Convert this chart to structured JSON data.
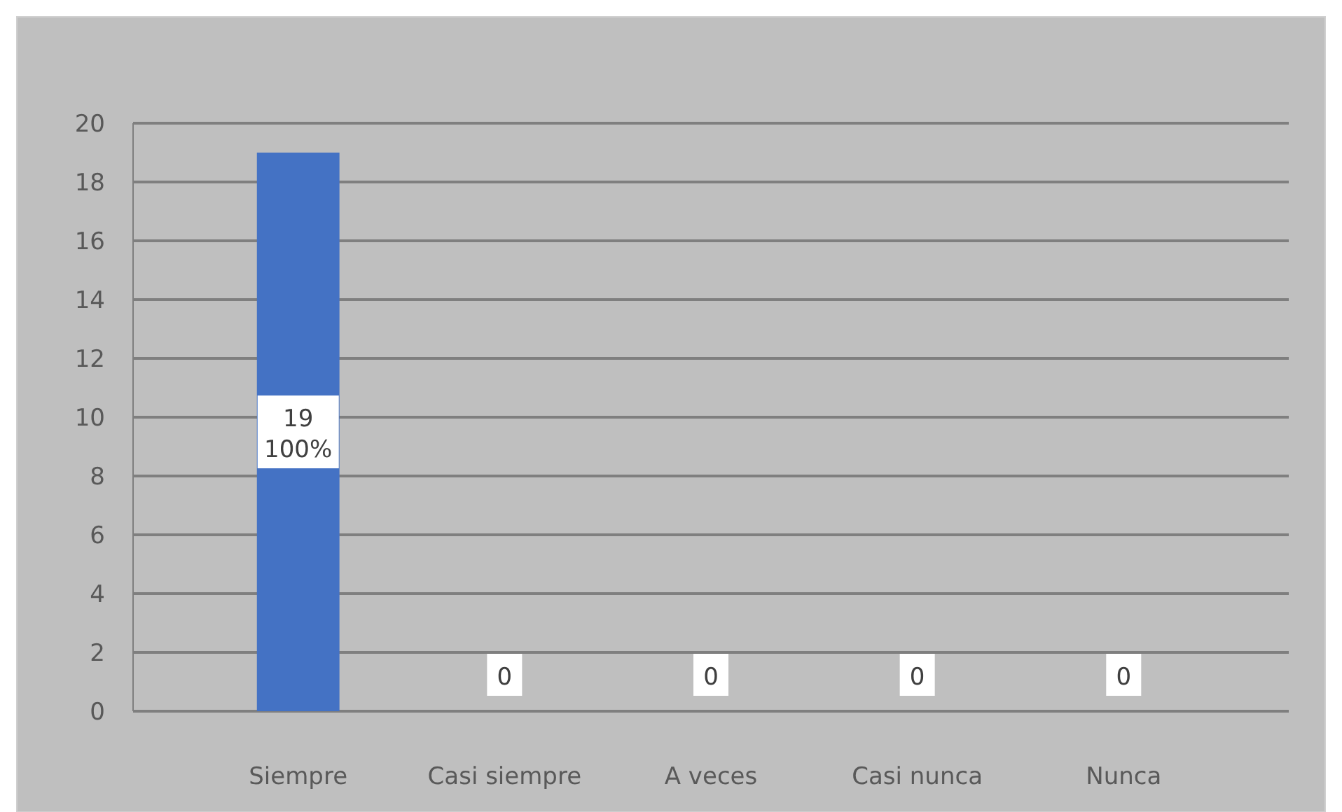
{
  "chart_data": {
    "type": "bar",
    "categories": [
      "Siempre",
      "Casi siempre",
      "A veces",
      "Casi nunca",
      "Nunca"
    ],
    "values": [
      19,
      0,
      0,
      0,
      0
    ],
    "colors": [
      "#4472c4",
      "#7f7f7f",
      "#8c8c8c",
      "#7f7f7f",
      "#7f7f7f"
    ],
    "data_labels": true,
    "annotations": [
      "100%"
    ],
    "ylim": [
      0,
      20
    ],
    "yticks": [
      0,
      2,
      4,
      6,
      8,
      10,
      12,
      14,
      16,
      18,
      20
    ],
    "grid": "y"
  }
}
